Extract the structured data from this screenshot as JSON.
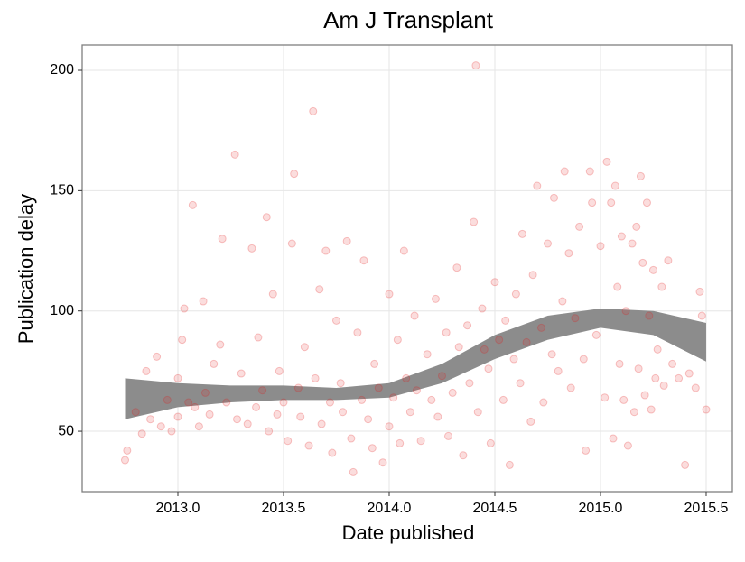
{
  "chart_data": {
    "type": "scatter",
    "title": "Am J Transplant",
    "x_label": "Date published",
    "y_label": "Publication delay",
    "color": "#e41a1c",
    "band_color": "#8c8c8c",
    "grid": true,
    "xlim": [
      2012.547,
      2015.624
    ],
    "ylim": [
      24.9,
      210.5
    ],
    "xticks": [
      {
        "value": 2013,
        "label": "2013.0"
      },
      {
        "value": 2013.5,
        "label": "2013.5"
      },
      {
        "value": 2014,
        "label": "2014.0"
      },
      {
        "value": 2014.5,
        "label": "2014.5"
      },
      {
        "value": 2015,
        "label": "2015.0"
      },
      {
        "value": 2015.5,
        "label": "2015.5"
      }
    ],
    "yticks": [
      50,
      100,
      150,
      200
    ],
    "x": [
      2012.75,
      2012.76,
      2012.8,
      2012.83,
      2012.85,
      2012.87,
      2012.9,
      2012.92,
      2012.95,
      2012.97,
      2013.0,
      2013.0,
      2013.02,
      2013.03,
      2013.05,
      2013.07,
      2013.08,
      2013.1,
      2013.12,
      2013.13,
      2013.15,
      2013.17,
      2013.2,
      2013.21,
      2013.23,
      2013.27,
      2013.28,
      2013.3,
      2013.33,
      2013.35,
      2013.37,
      2013.38,
      2013.4,
      2013.42,
      2013.43,
      2013.45,
      2013.47,
      2013.48,
      2013.5,
      2013.52,
      2013.54,
      2013.55,
      2013.57,
      2013.58,
      2013.6,
      2013.62,
      2013.64,
      2013.65,
      2013.67,
      2013.68,
      2013.7,
      2013.72,
      2013.73,
      2013.75,
      2013.77,
      2013.78,
      2013.8,
      2013.82,
      2013.83,
      2013.85,
      2013.87,
      2013.88,
      2013.9,
      2013.92,
      2013.93,
      2013.95,
      2013.97,
      2014.0,
      2014.0,
      2014.02,
      2014.04,
      2014.05,
      2014.07,
      2014.08,
      2014.1,
      2014.12,
      2014.13,
      2014.15,
      2014.18,
      2014.2,
      2014.22,
      2014.23,
      2014.25,
      2014.27,
      2014.28,
      2014.3,
      2014.32,
      2014.33,
      2014.35,
      2014.37,
      2014.38,
      2014.4,
      2014.41,
      2014.42,
      2014.44,
      2014.45,
      2014.47,
      2014.48,
      2014.5,
      2014.52,
      2014.54,
      2014.55,
      2014.57,
      2014.59,
      2014.6,
      2014.62,
      2014.63,
      2014.65,
      2014.67,
      2014.68,
      2014.7,
      2014.72,
      2014.73,
      2014.75,
      2014.77,
      2014.78,
      2014.8,
      2014.82,
      2014.83,
      2014.85,
      2014.86,
      2014.88,
      2014.9,
      2014.92,
      2014.93,
      2014.95,
      2014.96,
      2014.98,
      2015.0,
      2015.02,
      2015.03,
      2015.05,
      2015.06,
      2015.07,
      2015.08,
      2015.09,
      2015.1,
      2015.11,
      2015.12,
      2015.13,
      2015.15,
      2015.16,
      2015.17,
      2015.18,
      2015.19,
      2015.2,
      2015.21,
      2015.22,
      2015.23,
      2015.24,
      2015.25,
      2015.26,
      2015.27,
      2015.29,
      2015.3,
      2015.32,
      2015.34,
      2015.37,
      2015.4,
      2015.42,
      2015.45,
      2015.47,
      2015.48,
      2015.5
    ],
    "values": [
      38,
      42,
      58,
      49,
      75,
      55,
      81,
      52,
      63,
      50,
      72,
      56,
      88,
      101,
      62,
      144,
      60,
      52,
      104,
      66,
      57,
      78,
      86,
      130,
      62,
      165,
      55,
      74,
      53,
      126,
      60,
      89,
      67,
      139,
      50,
      107,
      57,
      75,
      62,
      46,
      128,
      157,
      68,
      56,
      85,
      44,
      183,
      72,
      109,
      53,
      125,
      62,
      41,
      96,
      70,
      58,
      129,
      47,
      33,
      91,
      63,
      121,
      55,
      43,
      78,
      68,
      37,
      107,
      52,
      64,
      88,
      45,
      125,
      72,
      58,
      98,
      67,
      46,
      82,
      63,
      105,
      56,
      73,
      91,
      48,
      66,
      118,
      85,
      40,
      94,
      70,
      137,
      202,
      58,
      101,
      84,
      76,
      45,
      112,
      88,
      63,
      96,
      36,
      80,
      107,
      70,
      132,
      87,
      54,
      115,
      152,
      93,
      62,
      128,
      82,
      147,
      75,
      104,
      158,
      124,
      68,
      97,
      135,
      80,
      42,
      158,
      145,
      90,
      127,
      64,
      162,
      145,
      47,
      152,
      110,
      78,
      131,
      63,
      100,
      44,
      128,
      58,
      135,
      76,
      156,
      120,
      65,
      145,
      98,
      59,
      117,
      72,
      84,
      110,
      69,
      121,
      78,
      72,
      36,
      74,
      68,
      108,
      98,
      59
    ],
    "smooth": {
      "x": [
        2012.75,
        2013.0,
        2013.25,
        2013.5,
        2013.75,
        2014.0,
        2014.25,
        2014.5,
        2014.75,
        2015.0,
        2015.25,
        2015.5
      ],
      "upper": [
        72,
        70,
        69,
        69,
        68,
        70,
        78,
        90,
        98,
        101,
        100,
        95
      ],
      "lower": [
        55,
        60,
        62,
        63,
        63,
        64,
        70,
        80,
        88,
        93,
        90,
        79
      ]
    }
  }
}
